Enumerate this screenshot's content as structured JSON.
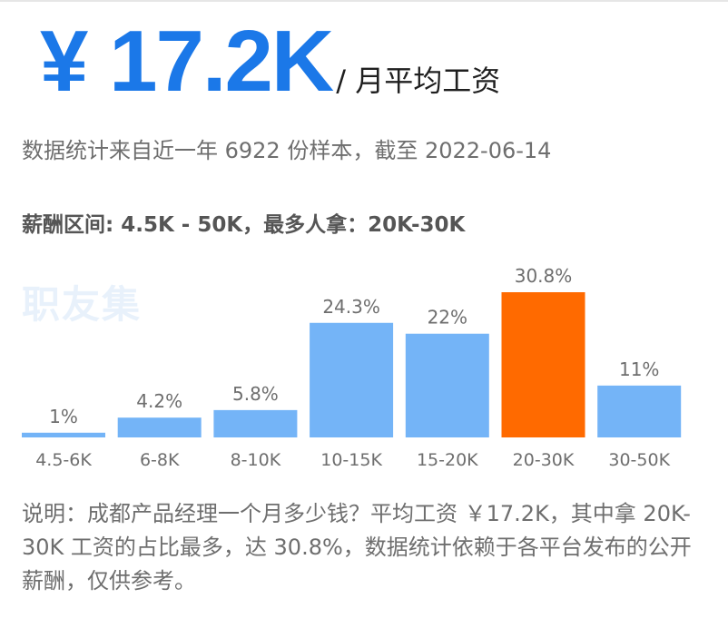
{
  "headline": {
    "value": "¥ 17.2K",
    "unit": "/ 月平均工资"
  },
  "subline": "数据统计来自近一年 6922 份样本，截至 2022-06-14",
  "range_text": "薪酬区间: 4.5K - 50K，最多人拿：20K-30K",
  "watermark": "职友集",
  "note": "说明：成都产品经理一个月多少钱？平均工资 ￥17.2K，其中拿 20K-30K 工资的占比最多，达 30.8%，数据统计依赖于各平台发布的公开薪酬，仅供参考。",
  "colors": {
    "accent": "#1b78e8",
    "bar": "#74b4f7",
    "highlight": "#ff6a00"
  },
  "chart_data": {
    "type": "bar",
    "categories": [
      "4.5-6K",
      "6-8K",
      "8-10K",
      "10-15K",
      "15-20K",
      "20-30K",
      "30-50K"
    ],
    "values": [
      1,
      4.2,
      5.8,
      24.3,
      22,
      30.8,
      11
    ],
    "data_labels": [
      "1%",
      "4.2%",
      "5.8%",
      "24.3%",
      "22%",
      "30.8%",
      "11%"
    ],
    "highlight_category": "20-30K",
    "ylim": [
      0,
      30.8
    ],
    "grid": false,
    "legend": "none"
  }
}
